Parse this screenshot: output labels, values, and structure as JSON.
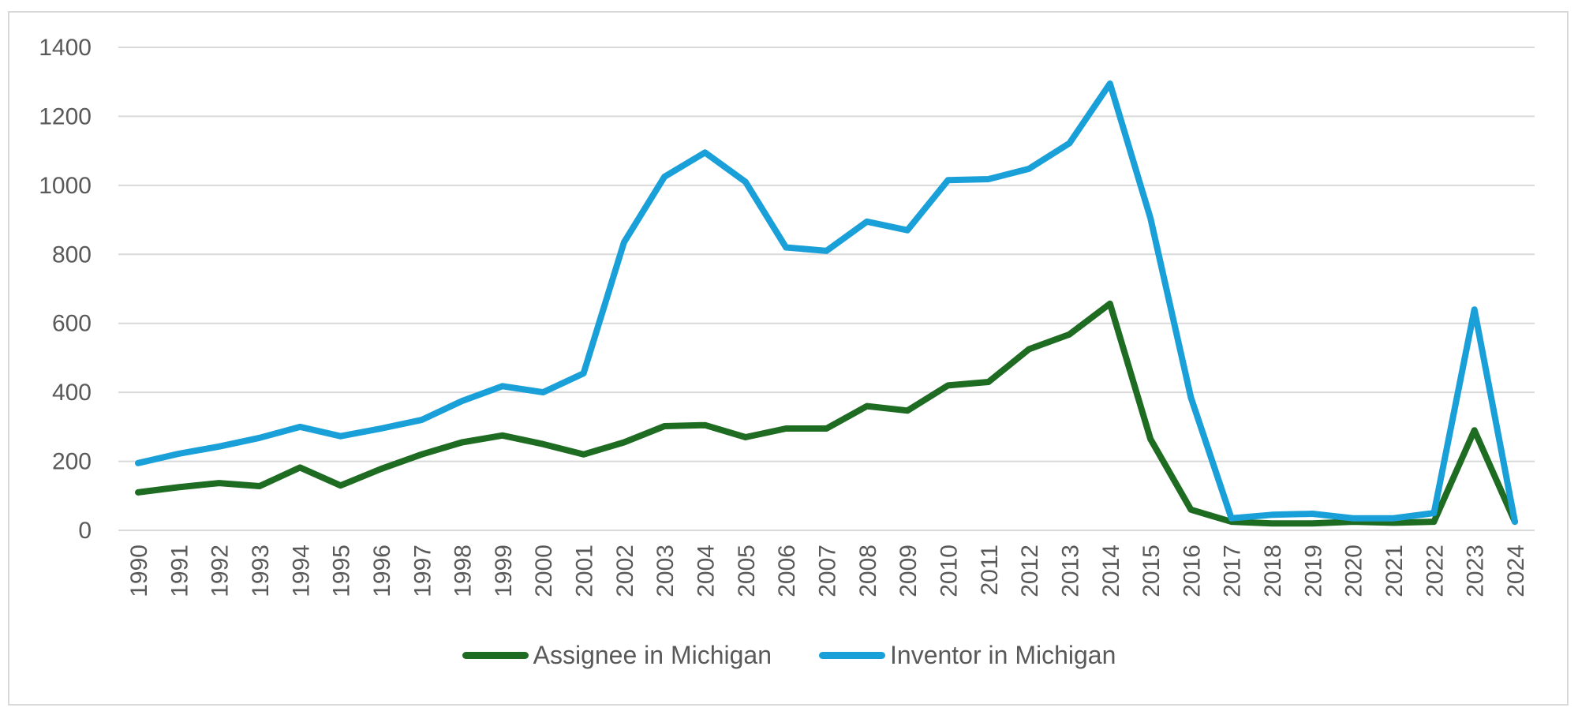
{
  "chart_data": {
    "type": "line",
    "title": "",
    "xlabel": "",
    "ylabel": "",
    "ylim": [
      0,
      1400
    ],
    "yticks": [
      0,
      200,
      400,
      600,
      800,
      1000,
      1200,
      1400
    ],
    "grid": true,
    "legend_position": "bottom",
    "x": [
      "1990",
      "1991",
      "1992",
      "1993",
      "1994",
      "1995",
      "1996",
      "1997",
      "1998",
      "1999",
      "2000",
      "2001",
      "2002",
      "2003",
      "2004",
      "2005",
      "2006",
      "2007",
      "2008",
      "2009",
      "2010",
      "2011",
      "2012",
      "2013",
      "2014",
      "2015",
      "2016",
      "2017",
      "2018",
      "2019",
      "2020",
      "2021",
      "2022",
      "2023",
      "2024"
    ],
    "series": [
      {
        "name": "Assignee in Michigan",
        "color": "#1e6b22",
        "values": [
          110,
          125,
          137,
          128,
          182,
          130,
          178,
          220,
          255,
          275,
          250,
          220,
          255,
          302,
          305,
          270,
          295,
          295,
          360,
          347,
          420,
          430,
          525,
          568,
          657,
          265,
          60,
          25,
          20,
          20,
          25,
          22,
          25,
          290,
          25
        ]
      },
      {
        "name": "Inventor in Michigan",
        "color": "#1aa0d8",
        "values": [
          195,
          222,
          243,
          268,
          300,
          273,
          295,
          320,
          375,
          418,
          400,
          455,
          835,
          1025,
          1095,
          1010,
          820,
          810,
          895,
          870,
          1015,
          1018,
          1048,
          1122,
          1295,
          905,
          385,
          35,
          45,
          48,
          35,
          35,
          50,
          640,
          25
        ]
      }
    ]
  }
}
